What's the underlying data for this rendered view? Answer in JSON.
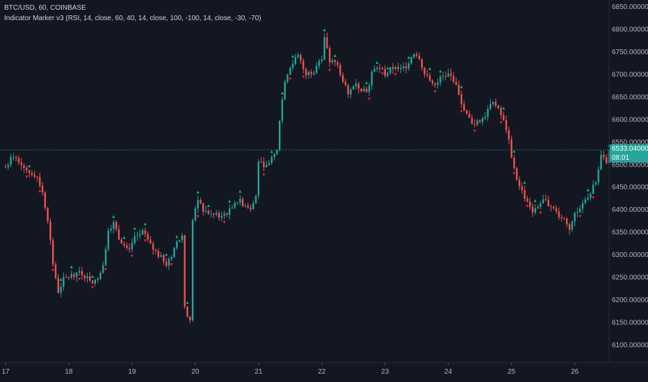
{
  "chart": {
    "symbol_line": "BTC/USD, 60, COINBASE",
    "indicator_line": "Indicator Marker v3 (RSI, 14, close, 60, 40, 14, close, 100, -100, 14, close, -30, -70)",
    "last_price_label": "6533.04000000",
    "countdown_label": "08:01"
  },
  "colors": {
    "background": "#131722",
    "up": "#26a69a",
    "down": "#ef5350",
    "marker_up": "#00c853",
    "marker_down": "#ff1744",
    "price_line": "#26a69a",
    "axis_text": "#b2b5be"
  },
  "chart_data": {
    "type": "candlestick",
    "symbol": "BTC/USD",
    "interval": "60",
    "exchange": "COINBASE",
    "ylim": [
      6060,
      6860
    ],
    "y_ticks": [
      6100,
      6150,
      6200,
      6250,
      6300,
      6350,
      6400,
      6450,
      6500,
      6550,
      6600,
      6650,
      6700,
      6750,
      6800,
      6850
    ],
    "y_tick_labels": [
      "6100.00000000",
      "6150.00000000",
      "6200.00000000",
      "6250.00000000",
      "6300.00000000",
      "6350.00000000",
      "6400.00000000",
      "6450.00000000",
      "6500.00000000",
      "6550.00000000",
      "6600.00000000",
      "6650.00000000",
      "6700.00000000",
      "6750.00000000",
      "6800.00000000",
      "6850.00000000"
    ],
    "x_ticks": [
      {
        "label": "17",
        "t": 0
      },
      {
        "label": "18",
        "t": 24
      },
      {
        "label": "19",
        "t": 48
      },
      {
        "label": "20",
        "t": 72
      },
      {
        "label": "21",
        "t": 96
      },
      {
        "label": "22",
        "t": 120
      },
      {
        "label": "23",
        "t": 144
      },
      {
        "label": "24",
        "t": 168
      },
      {
        "label": "25",
        "t": 192
      },
      {
        "label": "26",
        "t": 216
      }
    ],
    "last_price": 6533.04,
    "close_path": [
      [
        0,
        6495
      ],
      [
        3,
        6520
      ],
      [
        6,
        6505
      ],
      [
        9,
        6485
      ],
      [
        12,
        6475
      ],
      [
        14,
        6440
      ],
      [
        16,
        6380
      ],
      [
        18,
        6280
      ],
      [
        20,
        6220
      ],
      [
        22,
        6245
      ],
      [
        25,
        6255
      ],
      [
        28,
        6265
      ],
      [
        31,
        6250
      ],
      [
        34,
        6240
      ],
      [
        37,
        6280
      ],
      [
        39,
        6360
      ],
      [
        41,
        6370
      ],
      [
        43,
        6340
      ],
      [
        46,
        6310
      ],
      [
        49,
        6335
      ],
      [
        52,
        6350
      ],
      [
        55,
        6320
      ],
      [
        58,
        6300
      ],
      [
        61,
        6280
      ],
      [
        63,
        6300
      ],
      [
        65,
        6330
      ],
      [
        67,
        6340
      ],
      [
        68,
        6180
      ],
      [
        70,
        6150
      ],
      [
        71,
        6380
      ],
      [
        73,
        6420
      ],
      [
        75,
        6400
      ],
      [
        78,
        6390
      ],
      [
        81,
        6385
      ],
      [
        84,
        6395
      ],
      [
        86,
        6400
      ],
      [
        88,
        6420
      ],
      [
        90,
        6415
      ],
      [
        93,
        6400
      ],
      [
        95,
        6430
      ],
      [
        96,
        6510
      ],
      [
        98,
        6490
      ],
      [
        101,
        6515
      ],
      [
        103,
        6530
      ],
      [
        104,
        6600
      ],
      [
        106,
        6690
      ],
      [
        108,
        6720
      ],
      [
        111,
        6740
      ],
      [
        114,
        6700
      ],
      [
        117,
        6710
      ],
      [
        120,
        6740
      ],
      [
        121,
        6780
      ],
      [
        123,
        6730
      ],
      [
        126,
        6720
      ],
      [
        128,
        6690
      ],
      [
        130,
        6650
      ],
      [
        132,
        6680
      ],
      [
        135,
        6670
      ],
      [
        137,
        6665
      ],
      [
        139,
        6700
      ],
      [
        141,
        6720
      ],
      [
        144,
        6700
      ],
      [
        147,
        6715
      ],
      [
        150,
        6710
      ],
      [
        152,
        6720
      ],
      [
        155,
        6750
      ],
      [
        157,
        6740
      ],
      [
        159,
        6700
      ],
      [
        162,
        6680
      ],
      [
        165,
        6690
      ],
      [
        168,
        6700
      ],
      [
        170,
        6690
      ],
      [
        172,
        6660
      ],
      [
        174,
        6620
      ],
      [
        176,
        6600
      ],
      [
        178,
        6590
      ],
      [
        180,
        6600
      ],
      [
        182,
        6610
      ],
      [
        184,
        6640
      ],
      [
        186,
        6630
      ],
      [
        188,
        6610
      ],
      [
        190,
        6580
      ],
      [
        192,
        6520
      ],
      [
        194,
        6470
      ],
      [
        196,
        6440
      ],
      [
        198,
        6420
      ],
      [
        200,
        6400
      ],
      [
        202,
        6410
      ],
      [
        204,
        6420
      ],
      [
        206,
        6415
      ],
      [
        208,
        6400
      ],
      [
        210,
        6390
      ],
      [
        212,
        6380
      ],
      [
        214,
        6360
      ],
      [
        216,
        6390
      ],
      [
        218,
        6400
      ],
      [
        220,
        6425
      ],
      [
        222,
        6440
      ],
      [
        224,
        6460
      ],
      [
        226,
        6520
      ],
      [
        228,
        6510
      ],
      [
        229,
        6533.04
      ]
    ],
    "last_t": 229
  }
}
